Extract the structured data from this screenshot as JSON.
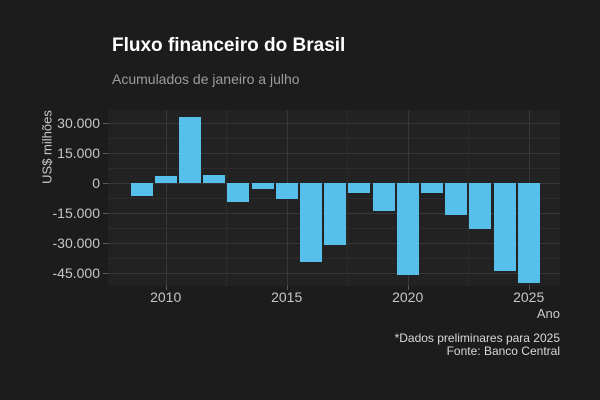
{
  "chart_data": {
    "type": "bar",
    "title": "Fluxo financeiro do Brasil",
    "subtitle": "Acumulados de janeiro a julho",
    "xlabel": "Ano",
    "ylabel": "US$ milhões",
    "x": [
      2009,
      2010,
      2011,
      2012,
      2013,
      2014,
      2015,
      2016,
      2017,
      2018,
      2019,
      2020,
      2021,
      2022,
      2023,
      2024,
      2025
    ],
    "values": [
      -6700,
      3600,
      33200,
      4000,
      -9500,
      -2800,
      -8200,
      -39700,
      -30900,
      -5000,
      -14200,
      -46000,
      -5200,
      -15900,
      -23000,
      -44100,
      -50100
    ],
    "ylim": [
      -51500,
      36600
    ],
    "y_ticks": [
      {
        "value": 30000,
        "label": "30.000"
      },
      {
        "value": 15000,
        "label": "15.000"
      },
      {
        "value": 0,
        "label": "0"
      },
      {
        "value": -15000,
        "label": "-15.000"
      },
      {
        "value": -30000,
        "label": "-30.000"
      },
      {
        "value": -45000,
        "label": "-45.000"
      }
    ],
    "x_ticks": [
      {
        "value": 2010,
        "label": "2010"
      },
      {
        "value": 2015,
        "label": "2015"
      },
      {
        "value": 2020,
        "label": "2020"
      },
      {
        "value": 2025,
        "label": "2025"
      }
    ],
    "grid": true,
    "legend": "none"
  },
  "caption": {
    "line1": "*Dados preliminares para 2025",
    "line2": "Fonte: Banco Central"
  },
  "colors": {
    "background": "#1c1c1c",
    "panel": "#222222",
    "bar": "#57bfec",
    "grid_major": "#383838",
    "grid_minor": "#2c2c2c",
    "title": "#ffffff",
    "subtitle": "#9c9c9c",
    "axis_text": "#c6c6c6"
  }
}
